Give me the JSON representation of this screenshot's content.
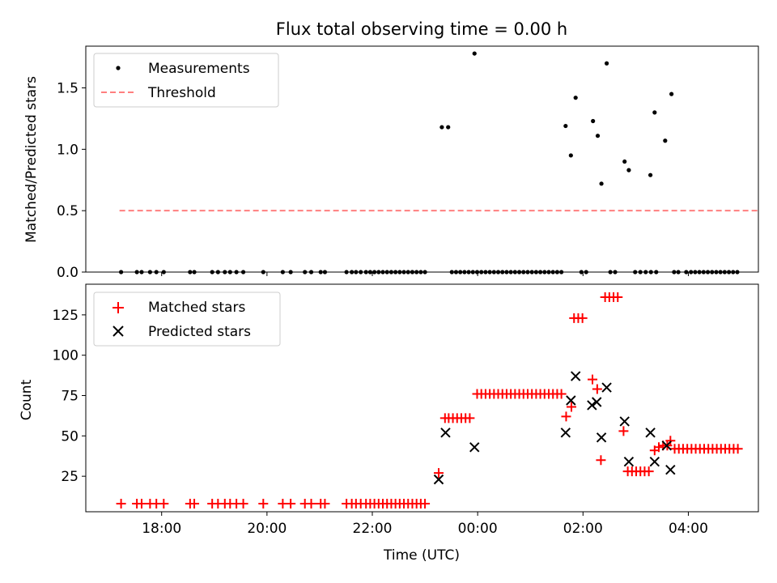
{
  "figure": {
    "title": "Flux total observing time = 0.00 h",
    "xlabel": "Time (UTC)"
  },
  "colors": {
    "measurement": "#000000",
    "threshold": "#ff7f7f",
    "matched": "#ff0000",
    "predicted": "#000000",
    "axes": "#000000"
  },
  "chart_data": [
    {
      "type": "scatter",
      "name": "ratio-panel",
      "ylabel": "Matched/Predicted stars",
      "xlim": [
        16.56,
        29.33
      ],
      "ylim": [
        0,
        1.84
      ],
      "yticks": [
        0.0,
        0.5,
        1.0,
        1.5
      ],
      "ytick_labels": [
        "0.0",
        "0.5",
        "1.0",
        "1.5"
      ],
      "xticks": [
        18,
        20,
        22,
        24,
        26,
        28
      ],
      "xtick_labels": [
        "18:00",
        "20:00",
        "22:00",
        "00:00",
        "02:00",
        "04:00"
      ],
      "legend": {
        "position": "upper left",
        "entries": [
          {
            "label": "Measurements",
            "marker": "dot"
          },
          {
            "label": "Threshold",
            "marker": "dashed-line"
          }
        ]
      },
      "threshold": {
        "y": 0.5,
        "x_range": [
          17.2,
          29.32
        ]
      },
      "series": [
        {
          "name": "Measurements",
          "points": [
            [
              17.23,
              0
            ],
            [
              17.53,
              0
            ],
            [
              17.62,
              0
            ],
            [
              17.78,
              0
            ],
            [
              17.9,
              0
            ],
            [
              18.04,
              0
            ],
            [
              18.54,
              0
            ],
            [
              18.62,
              0
            ],
            [
              18.96,
              0
            ],
            [
              19.07,
              0
            ],
            [
              19.2,
              0
            ],
            [
              19.3,
              0
            ],
            [
              19.42,
              0
            ],
            [
              19.55,
              0
            ],
            [
              19.93,
              0
            ],
            [
              20.3,
              0
            ],
            [
              20.45,
              0
            ],
            [
              20.72,
              0
            ],
            [
              20.84,
              0
            ],
            [
              21.02,
              0
            ],
            [
              21.1,
              0
            ],
            [
              21.51,
              0
            ],
            [
              21.61,
              0
            ],
            [
              21.69,
              0
            ],
            [
              21.78,
              0
            ],
            [
              21.88,
              0
            ],
            [
              21.96,
              0
            ],
            [
              22.04,
              0
            ],
            [
              22.12,
              0
            ],
            [
              22.2,
              0
            ],
            [
              22.28,
              0
            ],
            [
              22.36,
              0
            ],
            [
              22.44,
              0
            ],
            [
              22.52,
              0
            ],
            [
              22.6,
              0
            ],
            [
              22.68,
              0
            ],
            [
              22.76,
              0
            ],
            [
              22.84,
              0
            ],
            [
              22.92,
              0
            ],
            [
              23.0,
              0
            ],
            [
              23.51,
              0
            ],
            [
              23.59,
              0
            ],
            [
              23.67,
              0
            ],
            [
              23.75,
              0
            ],
            [
              23.83,
              0
            ],
            [
              23.91,
              0
            ],
            [
              23.99,
              0
            ],
            [
              24.07,
              0
            ],
            [
              24.15,
              0
            ],
            [
              24.23,
              0
            ],
            [
              24.31,
              0
            ],
            [
              24.39,
              0
            ],
            [
              24.47,
              0
            ],
            [
              24.55,
              0
            ],
            [
              24.63,
              0
            ],
            [
              24.71,
              0
            ],
            [
              24.79,
              0
            ],
            [
              24.87,
              0
            ],
            [
              24.95,
              0
            ],
            [
              25.03,
              0
            ],
            [
              25.11,
              0
            ],
            [
              25.19,
              0
            ],
            [
              25.27,
              0
            ],
            [
              25.35,
              0
            ],
            [
              25.43,
              0
            ],
            [
              25.51,
              0
            ],
            [
              25.59,
              0
            ],
            [
              25.97,
              0
            ],
            [
              26.06,
              0
            ],
            [
              26.52,
              0
            ],
            [
              26.61,
              0
            ],
            [
              26.99,
              0
            ],
            [
              27.09,
              0
            ],
            [
              27.19,
              0
            ],
            [
              27.29,
              0
            ],
            [
              27.39,
              0
            ],
            [
              27.73,
              0
            ],
            [
              27.81,
              0
            ],
            [
              27.96,
              0
            ],
            [
              28.05,
              0
            ],
            [
              28.13,
              0
            ],
            [
              28.21,
              0
            ],
            [
              28.29,
              0
            ],
            [
              28.37,
              0
            ],
            [
              28.45,
              0
            ],
            [
              28.53,
              0
            ],
            [
              28.61,
              0
            ],
            [
              28.69,
              0
            ],
            [
              28.77,
              0
            ],
            [
              28.85,
              0
            ],
            [
              28.93,
              0
            ],
            [
              23.32,
              1.18
            ],
            [
              23.44,
              1.18
            ],
            [
              23.94,
              1.78
            ],
            [
              25.67,
              1.19
            ],
            [
              25.77,
              0.95
            ],
            [
              25.86,
              1.42
            ],
            [
              26.19,
              1.23
            ],
            [
              26.28,
              1.11
            ],
            [
              26.35,
              0.72
            ],
            [
              26.45,
              1.7
            ],
            [
              26.79,
              0.9
            ],
            [
              26.87,
              0.83
            ],
            [
              27.28,
              0.79
            ],
            [
              27.36,
              1.3
            ],
            [
              27.56,
              1.07
            ],
            [
              27.68,
              1.45
            ]
          ]
        }
      ]
    },
    {
      "type": "scatter",
      "name": "count-panel",
      "ylabel": "Count",
      "xlim": [
        16.56,
        29.33
      ],
      "ylim": [
        3,
        144
      ],
      "yticks": [
        25,
        50,
        75,
        100,
        125
      ],
      "ytick_labels": [
        "25",
        "50",
        "75",
        "100",
        "125"
      ],
      "xticks": [
        18,
        20,
        22,
        24,
        26,
        28
      ],
      "xtick_labels": [
        "18:00",
        "20:00",
        "22:00",
        "00:00",
        "02:00",
        "04:00"
      ],
      "legend": {
        "position": "upper left",
        "entries": [
          {
            "label": "Matched stars",
            "marker": "plus"
          },
          {
            "label": "Predicted stars",
            "marker": "cross"
          }
        ]
      },
      "series": [
        {
          "name": "Matched stars",
          "points": [
            [
              17.23,
              8
            ],
            [
              17.53,
              8
            ],
            [
              17.62,
              8
            ],
            [
              17.78,
              8
            ],
            [
              17.9,
              8
            ],
            [
              18.04,
              8
            ],
            [
              18.54,
              8
            ],
            [
              18.62,
              8
            ],
            [
              18.96,
              8
            ],
            [
              19.07,
              8
            ],
            [
              19.2,
              8
            ],
            [
              19.3,
              8
            ],
            [
              19.42,
              8
            ],
            [
              19.55,
              8
            ],
            [
              19.93,
              8
            ],
            [
              20.3,
              8
            ],
            [
              20.45,
              8
            ],
            [
              20.72,
              8
            ],
            [
              20.84,
              8
            ],
            [
              21.02,
              8
            ],
            [
              21.1,
              8
            ],
            [
              21.51,
              8
            ],
            [
              21.61,
              8
            ],
            [
              21.69,
              8
            ],
            [
              21.78,
              8
            ],
            [
              21.88,
              8
            ],
            [
              21.96,
              8
            ],
            [
              22.04,
              8
            ],
            [
              22.12,
              8
            ],
            [
              22.2,
              8
            ],
            [
              22.28,
              8
            ],
            [
              22.36,
              8
            ],
            [
              22.44,
              8
            ],
            [
              22.52,
              8
            ],
            [
              22.6,
              8
            ],
            [
              22.68,
              8
            ],
            [
              22.76,
              8
            ],
            [
              22.84,
              8
            ],
            [
              22.92,
              8
            ],
            [
              23.0,
              8
            ],
            [
              23.26,
              27
            ],
            [
              23.38,
              61
            ],
            [
              23.45,
              61
            ],
            [
              23.53,
              61
            ],
            [
              23.61,
              61
            ],
            [
              23.69,
              61
            ],
            [
              23.77,
              61
            ],
            [
              23.85,
              61
            ],
            [
              23.99,
              76
            ],
            [
              24.07,
              76
            ],
            [
              24.15,
              76
            ],
            [
              24.23,
              76
            ],
            [
              24.31,
              76
            ],
            [
              24.39,
              76
            ],
            [
              24.47,
              76
            ],
            [
              24.55,
              76
            ],
            [
              24.63,
              76
            ],
            [
              24.71,
              76
            ],
            [
              24.79,
              76
            ],
            [
              24.87,
              76
            ],
            [
              24.95,
              76
            ],
            [
              25.03,
              76
            ],
            [
              25.11,
              76
            ],
            [
              25.19,
              76
            ],
            [
              25.27,
              76
            ],
            [
              25.35,
              76
            ],
            [
              25.43,
              76
            ],
            [
              25.51,
              76
            ],
            [
              25.59,
              76
            ],
            [
              25.68,
              62
            ],
            [
              25.78,
              68
            ],
            [
              25.83,
              123
            ],
            [
              25.91,
              123
            ],
            [
              25.99,
              123
            ],
            [
              26.18,
              85
            ],
            [
              26.27,
              79
            ],
            [
              26.34,
              35
            ],
            [
              26.42,
              136
            ],
            [
              26.5,
              136
            ],
            [
              26.58,
              136
            ],
            [
              26.66,
              136
            ],
            [
              26.77,
              53
            ],
            [
              26.85,
              28
            ],
            [
              26.93,
              28
            ],
            [
              27.01,
              28
            ],
            [
              27.09,
              28
            ],
            [
              27.17,
              28
            ],
            [
              27.25,
              28
            ],
            [
              27.36,
              41
            ],
            [
              27.44,
              43
            ],
            [
              27.52,
              44
            ],
            [
              27.6,
              44
            ],
            [
              27.66,
              47
            ],
            [
              27.74,
              42
            ],
            [
              27.82,
              42
            ],
            [
              27.9,
              42
            ],
            [
              27.98,
              42
            ],
            [
              28.06,
              42
            ],
            [
              28.14,
              42
            ],
            [
              28.22,
              42
            ],
            [
              28.3,
              42
            ],
            [
              28.38,
              42
            ],
            [
              28.46,
              42
            ],
            [
              28.54,
              42
            ],
            [
              28.62,
              42
            ],
            [
              28.7,
              42
            ],
            [
              28.78,
              42
            ],
            [
              28.86,
              42
            ],
            [
              28.94,
              42
            ]
          ]
        },
        {
          "name": "Predicted stars",
          "points": [
            [
              23.26,
              23
            ],
            [
              23.39,
              52
            ],
            [
              23.94,
              43
            ],
            [
              25.67,
              52
            ],
            [
              25.77,
              72
            ],
            [
              25.86,
              87
            ],
            [
              26.17,
              69
            ],
            [
              26.26,
              71
            ],
            [
              26.35,
              49
            ],
            [
              26.45,
              80
            ],
            [
              26.79,
              59
            ],
            [
              26.87,
              34
            ],
            [
              27.28,
              52
            ],
            [
              27.36,
              34
            ],
            [
              27.59,
              44
            ],
            [
              27.66,
              29
            ]
          ]
        }
      ]
    }
  ]
}
